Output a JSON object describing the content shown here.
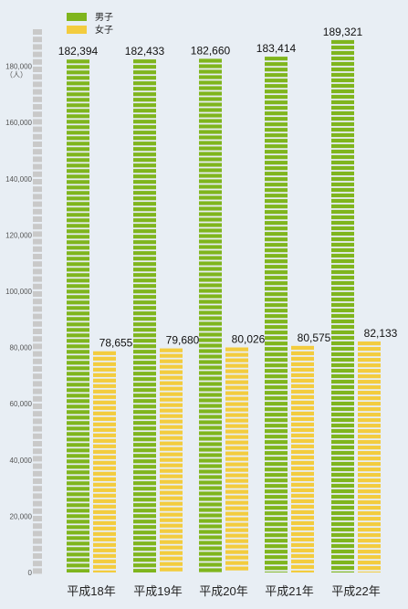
{
  "chart_data": {
    "type": "bar",
    "unit": "（人）",
    "categories": [
      "平成18年",
      "平成19年",
      "平成20年",
      "平成21年",
      "平成22年"
    ],
    "series": [
      {
        "name": "男子",
        "color": "#7fb51d",
        "values": [
          182394,
          182433,
          182660,
          183414,
          189321
        ]
      },
      {
        "name": "女子",
        "color": "#f3cc3e",
        "values": [
          78655,
          79680,
          80026,
          80575,
          82133
        ]
      }
    ],
    "value_labels": [
      [
        "182,394",
        "182,433",
        "182,660",
        "183,414",
        "189,321"
      ],
      [
        "78,655",
        "79,680",
        "80,026",
        "80,575",
        "82,133"
      ]
    ],
    "y_ticks": [
      {
        "value": 0,
        "label": "0"
      },
      {
        "value": 20000,
        "label": "20,000"
      },
      {
        "value": 40000,
        "label": "40,000"
      },
      {
        "value": 60000,
        "label": "60,000"
      },
      {
        "value": 80000,
        "label": "80,000"
      },
      {
        "value": 100000,
        "label": "100,000"
      },
      {
        "value": 120000,
        "label": "120,000"
      },
      {
        "value": 140000,
        "label": "140,000"
      },
      {
        "value": 160000,
        "label": "160,000"
      },
      {
        "value": 180000,
        "label": "180,000"
      }
    ],
    "ylim": [
      0,
      200000
    ],
    "legend_position": "top-left",
    "grid": false
  }
}
